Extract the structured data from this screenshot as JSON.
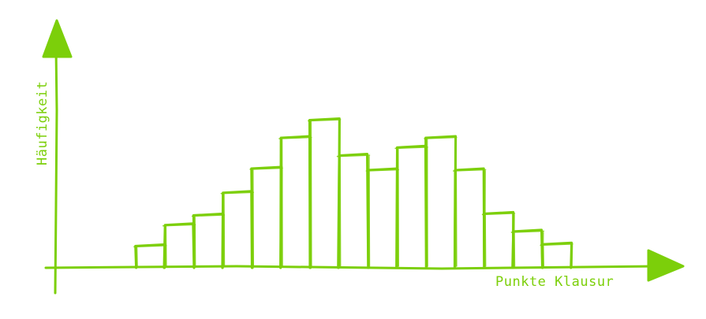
{
  "chart_data": {
    "type": "bar",
    "title": "",
    "xlabel": "Punkte Klausur",
    "ylabel": "Häufigkeit",
    "categories": [
      "",
      "",
      "",
      "",
      "",
      "",
      "",
      "",
      "",
      "",
      "",
      "",
      "",
      "",
      ""
    ],
    "values": [
      1.3,
      2.6,
      3.2,
      4.6,
      6.1,
      8.0,
      9.1,
      6.9,
      6.0,
      7.4,
      8.0,
      6.0,
      3.3,
      2.2,
      1.4
    ],
    "ylim": [
      0,
      12
    ],
    "grid": false,
    "legend": "none",
    "colors": {
      "stroke": "#7ccf0a",
      "background": "#ffffff"
    }
  }
}
